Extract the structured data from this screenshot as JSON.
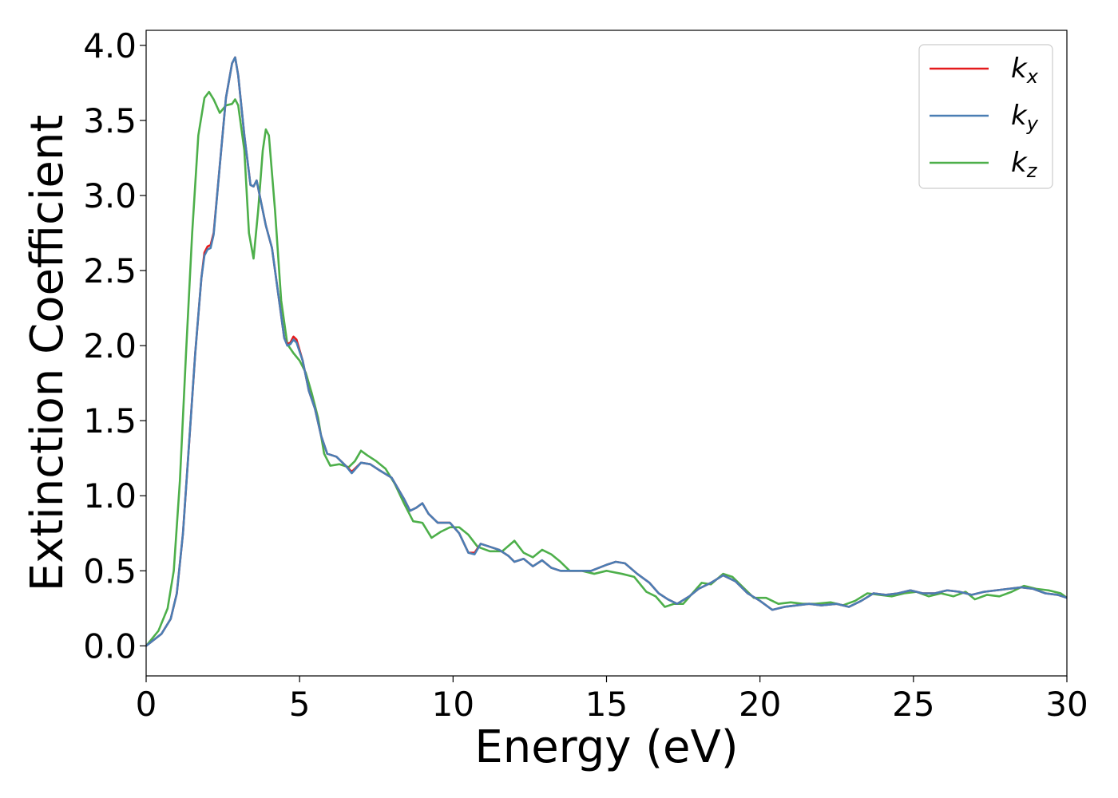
{
  "chart_data": {
    "type": "line",
    "title": "",
    "xlabel": "Energy (eV)",
    "ylabel": "Extinction Coefficient",
    "xlim": [
      0,
      30
    ],
    "ylim": [
      -0.2,
      4.1
    ],
    "xticks": [
      0,
      5,
      10,
      15,
      20,
      25,
      30
    ],
    "xtick_labels": [
      "0",
      "5",
      "10",
      "15",
      "20",
      "25",
      "30"
    ],
    "yticks": [
      0.0,
      0.5,
      1.0,
      1.5,
      2.0,
      2.5,
      3.0,
      3.5,
      4.0
    ],
    "ytick_labels": [
      "0.0",
      "0.5",
      "1.0",
      "1.5",
      "2.0",
      "2.5",
      "3.0",
      "3.5",
      "4.0"
    ],
    "grid": false,
    "legend_position": "top-right",
    "series": [
      {
        "name": "k_x",
        "label_main": "k",
        "label_sub": "x",
        "color": "#e41a1c",
        "points": [
          [
            0,
            0
          ],
          [
            0.5,
            0.08
          ],
          [
            0.8,
            0.18
          ],
          [
            1.0,
            0.35
          ],
          [
            1.2,
            0.75
          ],
          [
            1.4,
            1.35
          ],
          [
            1.6,
            1.95
          ],
          [
            1.8,
            2.45
          ],
          [
            1.9,
            2.62
          ],
          [
            2.0,
            2.66
          ],
          [
            2.1,
            2.67
          ],
          [
            2.2,
            2.75
          ],
          [
            2.4,
            3.2
          ],
          [
            2.6,
            3.65
          ],
          [
            2.8,
            3.88
          ],
          [
            2.9,
            3.92
          ],
          [
            3.0,
            3.8
          ],
          [
            3.2,
            3.4
          ],
          [
            3.4,
            3.07
          ],
          [
            3.5,
            3.06
          ],
          [
            3.6,
            3.1
          ],
          [
            3.7,
            3.0
          ],
          [
            3.9,
            2.8
          ],
          [
            4.1,
            2.65
          ],
          [
            4.3,
            2.35
          ],
          [
            4.5,
            2.05
          ],
          [
            4.6,
            2.01
          ],
          [
            4.7,
            2.02
          ],
          [
            4.8,
            2.06
          ],
          [
            4.9,
            2.04
          ],
          [
            5.1,
            1.9
          ],
          [
            5.3,
            1.7
          ],
          [
            5.5,
            1.58
          ],
          [
            5.7,
            1.4
          ],
          [
            5.9,
            1.28
          ],
          [
            6.2,
            1.26
          ],
          [
            6.5,
            1.2
          ],
          [
            6.7,
            1.16
          ],
          [
            7.0,
            1.22
          ],
          [
            7.3,
            1.21
          ],
          [
            7.6,
            1.17
          ],
          [
            8.0,
            1.12
          ],
          [
            8.4,
            0.98
          ],
          [
            8.6,
            0.9
          ],
          [
            8.8,
            0.92
          ],
          [
            9.0,
            0.95
          ],
          [
            9.2,
            0.88
          ],
          [
            9.5,
            0.82
          ],
          [
            9.9,
            0.82
          ],
          [
            10.2,
            0.75
          ],
          [
            10.5,
            0.62
          ],
          [
            10.7,
            0.62
          ],
          [
            10.9,
            0.68
          ],
          [
            11.2,
            0.66
          ],
          [
            11.5,
            0.64
          ],
          [
            11.8,
            0.6
          ],
          [
            12.0,
            0.56
          ],
          [
            12.3,
            0.58
          ],
          [
            12.6,
            0.53
          ],
          [
            12.9,
            0.57
          ],
          [
            13.2,
            0.52
          ],
          [
            13.5,
            0.5
          ],
          [
            14.0,
            0.5
          ],
          [
            14.5,
            0.5
          ],
          [
            15.0,
            0.54
          ],
          [
            15.3,
            0.56
          ],
          [
            15.6,
            0.55
          ],
          [
            16.0,
            0.48
          ],
          [
            16.4,
            0.42
          ],
          [
            16.7,
            0.35
          ],
          [
            17.0,
            0.31
          ],
          [
            17.3,
            0.28
          ],
          [
            17.7,
            0.33
          ],
          [
            18.0,
            0.38
          ],
          [
            18.4,
            0.42
          ],
          [
            18.8,
            0.47
          ],
          [
            19.2,
            0.43
          ],
          [
            19.6,
            0.35
          ],
          [
            20.0,
            0.3
          ],
          [
            20.4,
            0.24
          ],
          [
            20.8,
            0.26
          ],
          [
            21.2,
            0.27
          ],
          [
            21.6,
            0.28
          ],
          [
            22.0,
            0.27
          ],
          [
            22.5,
            0.28
          ],
          [
            22.9,
            0.26
          ],
          [
            23.3,
            0.3
          ],
          [
            23.7,
            0.35
          ],
          [
            24.1,
            0.34
          ],
          [
            24.5,
            0.35
          ],
          [
            24.9,
            0.37
          ],
          [
            25.3,
            0.35
          ],
          [
            25.7,
            0.35
          ],
          [
            26.1,
            0.37
          ],
          [
            26.5,
            0.36
          ],
          [
            26.9,
            0.34
          ],
          [
            27.3,
            0.36
          ],
          [
            27.7,
            0.37
          ],
          [
            28.1,
            0.38
          ],
          [
            28.5,
            0.39
          ],
          [
            28.9,
            0.38
          ],
          [
            29.3,
            0.35
          ],
          [
            29.7,
            0.34
          ],
          [
            30.0,
            0.32
          ]
        ]
      },
      {
        "name": "k_y",
        "label_main": "k",
        "label_sub": "y",
        "color": "#4a7eb4",
        "points": [
          [
            0,
            0
          ],
          [
            0.5,
            0.08
          ],
          [
            0.8,
            0.18
          ],
          [
            1.0,
            0.35
          ],
          [
            1.2,
            0.75
          ],
          [
            1.4,
            1.35
          ],
          [
            1.6,
            1.95
          ],
          [
            1.8,
            2.45
          ],
          [
            1.9,
            2.6
          ],
          [
            2.0,
            2.64
          ],
          [
            2.1,
            2.65
          ],
          [
            2.2,
            2.74
          ],
          [
            2.4,
            3.2
          ],
          [
            2.6,
            3.65
          ],
          [
            2.8,
            3.88
          ],
          [
            2.9,
            3.92
          ],
          [
            3.0,
            3.8
          ],
          [
            3.2,
            3.4
          ],
          [
            3.4,
            3.07
          ],
          [
            3.5,
            3.06
          ],
          [
            3.6,
            3.1
          ],
          [
            3.7,
            3.0
          ],
          [
            3.9,
            2.8
          ],
          [
            4.1,
            2.65
          ],
          [
            4.3,
            2.35
          ],
          [
            4.5,
            2.05
          ],
          [
            4.6,
            2.0
          ],
          [
            4.7,
            2.01
          ],
          [
            4.8,
            2.04
          ],
          [
            4.9,
            2.02
          ],
          [
            5.1,
            1.9
          ],
          [
            5.3,
            1.7
          ],
          [
            5.5,
            1.58
          ],
          [
            5.7,
            1.4
          ],
          [
            5.9,
            1.28
          ],
          [
            6.2,
            1.26
          ],
          [
            6.5,
            1.2
          ],
          [
            6.7,
            1.15
          ],
          [
            7.0,
            1.22
          ],
          [
            7.3,
            1.21
          ],
          [
            7.6,
            1.17
          ],
          [
            8.0,
            1.12
          ],
          [
            8.4,
            0.98
          ],
          [
            8.6,
            0.9
          ],
          [
            8.8,
            0.92
          ],
          [
            9.0,
            0.95
          ],
          [
            9.2,
            0.88
          ],
          [
            9.5,
            0.82
          ],
          [
            9.9,
            0.82
          ],
          [
            10.2,
            0.75
          ],
          [
            10.5,
            0.62
          ],
          [
            10.7,
            0.61
          ],
          [
            10.9,
            0.68
          ],
          [
            11.2,
            0.66
          ],
          [
            11.5,
            0.64
          ],
          [
            11.8,
            0.6
          ],
          [
            12.0,
            0.56
          ],
          [
            12.3,
            0.58
          ],
          [
            12.6,
            0.53
          ],
          [
            12.9,
            0.57
          ],
          [
            13.2,
            0.52
          ],
          [
            13.5,
            0.5
          ],
          [
            14.0,
            0.5
          ],
          [
            14.5,
            0.5
          ],
          [
            15.0,
            0.54
          ],
          [
            15.3,
            0.56
          ],
          [
            15.6,
            0.55
          ],
          [
            16.0,
            0.48
          ],
          [
            16.4,
            0.42
          ],
          [
            16.7,
            0.35
          ],
          [
            17.0,
            0.31
          ],
          [
            17.3,
            0.28
          ],
          [
            17.7,
            0.33
          ],
          [
            18.0,
            0.38
          ],
          [
            18.4,
            0.42
          ],
          [
            18.8,
            0.47
          ],
          [
            19.2,
            0.43
          ],
          [
            19.6,
            0.35
          ],
          [
            20.0,
            0.3
          ],
          [
            20.4,
            0.24
          ],
          [
            20.8,
            0.26
          ],
          [
            21.2,
            0.27
          ],
          [
            21.6,
            0.28
          ],
          [
            22.0,
            0.27
          ],
          [
            22.5,
            0.28
          ],
          [
            22.9,
            0.26
          ],
          [
            23.3,
            0.3
          ],
          [
            23.7,
            0.35
          ],
          [
            24.1,
            0.34
          ],
          [
            24.5,
            0.35
          ],
          [
            24.9,
            0.37
          ],
          [
            25.3,
            0.35
          ],
          [
            25.7,
            0.35
          ],
          [
            26.1,
            0.37
          ],
          [
            26.5,
            0.36
          ],
          [
            26.9,
            0.34
          ],
          [
            27.3,
            0.36
          ],
          [
            27.7,
            0.37
          ],
          [
            28.1,
            0.38
          ],
          [
            28.5,
            0.39
          ],
          [
            28.9,
            0.38
          ],
          [
            29.3,
            0.35
          ],
          [
            29.7,
            0.34
          ],
          [
            30.0,
            0.32
          ]
        ]
      },
      {
        "name": "k_z",
        "label_main": "k",
        "label_sub": "z",
        "color": "#4daf4a",
        "points": [
          [
            0,
            0
          ],
          [
            0.4,
            0.1
          ],
          [
            0.7,
            0.25
          ],
          [
            0.9,
            0.5
          ],
          [
            1.1,
            1.1
          ],
          [
            1.3,
            1.95
          ],
          [
            1.5,
            2.75
          ],
          [
            1.7,
            3.4
          ],
          [
            1.9,
            3.65
          ],
          [
            2.05,
            3.69
          ],
          [
            2.2,
            3.64
          ],
          [
            2.4,
            3.55
          ],
          [
            2.6,
            3.6
          ],
          [
            2.8,
            3.61
          ],
          [
            2.9,
            3.64
          ],
          [
            3.0,
            3.6
          ],
          [
            3.2,
            3.3
          ],
          [
            3.35,
            2.75
          ],
          [
            3.5,
            2.58
          ],
          [
            3.65,
            2.9
          ],
          [
            3.8,
            3.3
          ],
          [
            3.9,
            3.44
          ],
          [
            4.0,
            3.4
          ],
          [
            4.2,
            2.9
          ],
          [
            4.4,
            2.3
          ],
          [
            4.6,
            2.01
          ],
          [
            4.8,
            1.95
          ],
          [
            5.0,
            1.9
          ],
          [
            5.2,
            1.82
          ],
          [
            5.4,
            1.68
          ],
          [
            5.6,
            1.52
          ],
          [
            5.8,
            1.28
          ],
          [
            6.0,
            1.2
          ],
          [
            6.3,
            1.21
          ],
          [
            6.6,
            1.19
          ],
          [
            6.8,
            1.23
          ],
          [
            7.0,
            1.3
          ],
          [
            7.2,
            1.27
          ],
          [
            7.5,
            1.23
          ],
          [
            7.8,
            1.18
          ],
          [
            8.1,
            1.08
          ],
          [
            8.4,
            0.95
          ],
          [
            8.7,
            0.83
          ],
          [
            9.0,
            0.82
          ],
          [
            9.3,
            0.72
          ],
          [
            9.6,
            0.76
          ],
          [
            9.9,
            0.79
          ],
          [
            10.2,
            0.79
          ],
          [
            10.5,
            0.74
          ],
          [
            10.8,
            0.66
          ],
          [
            11.2,
            0.63
          ],
          [
            11.6,
            0.63
          ],
          [
            12.0,
            0.7
          ],
          [
            12.3,
            0.62
          ],
          [
            12.6,
            0.59
          ],
          [
            12.9,
            0.64
          ],
          [
            13.2,
            0.61
          ],
          [
            13.5,
            0.56
          ],
          [
            13.8,
            0.5
          ],
          [
            14.2,
            0.5
          ],
          [
            14.6,
            0.48
          ],
          [
            15.0,
            0.5
          ],
          [
            15.5,
            0.48
          ],
          [
            15.9,
            0.46
          ],
          [
            16.3,
            0.36
          ],
          [
            16.6,
            0.33
          ],
          [
            16.9,
            0.26
          ],
          [
            17.2,
            0.28
          ],
          [
            17.5,
            0.28
          ],
          [
            17.8,
            0.35
          ],
          [
            18.1,
            0.42
          ],
          [
            18.4,
            0.41
          ],
          [
            18.8,
            0.48
          ],
          [
            19.1,
            0.46
          ],
          [
            19.5,
            0.38
          ],
          [
            19.8,
            0.32
          ],
          [
            20.2,
            0.32
          ],
          [
            20.6,
            0.28
          ],
          [
            21.0,
            0.29
          ],
          [
            21.4,
            0.28
          ],
          [
            21.8,
            0.28
          ],
          [
            22.3,
            0.29
          ],
          [
            22.7,
            0.27
          ],
          [
            23.1,
            0.3
          ],
          [
            23.5,
            0.35
          ],
          [
            23.9,
            0.34
          ],
          [
            24.3,
            0.33
          ],
          [
            24.7,
            0.35
          ],
          [
            25.1,
            0.36
          ],
          [
            25.5,
            0.33
          ],
          [
            25.9,
            0.35
          ],
          [
            26.3,
            0.33
          ],
          [
            26.7,
            0.36
          ],
          [
            27.0,
            0.31
          ],
          [
            27.4,
            0.34
          ],
          [
            27.8,
            0.33
          ],
          [
            28.2,
            0.36
          ],
          [
            28.6,
            0.4
          ],
          [
            29.0,
            0.38
          ],
          [
            29.4,
            0.37
          ],
          [
            29.8,
            0.35
          ],
          [
            30.0,
            0.32
          ]
        ]
      }
    ]
  }
}
